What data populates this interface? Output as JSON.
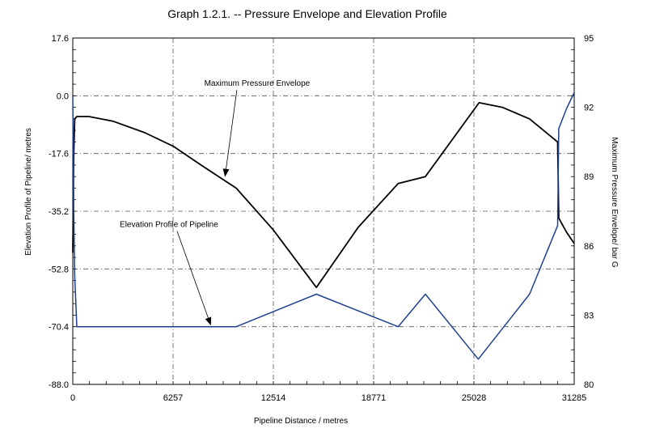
{
  "chart_data": {
    "type": "line",
    "title": "Graph 1.2.1.  --  Pressure Envelope and Elevation Profile",
    "xlabel": "Pipeline Distance / metres",
    "ylabel_left": "Elevation Profile of Pipeline/ metres",
    "ylabel_right": "Maximum Pressure Envelope/ bar G",
    "xlim": [
      0,
      31285
    ],
    "ylim_left": [
      -88.0,
      17.6
    ],
    "ylim_right": [
      80,
      95
    ],
    "x_ticks": [
      "0",
      "6257",
      "12514",
      "18771",
      "25028",
      "31285"
    ],
    "y_left_ticks": [
      "17.6",
      "0.0",
      "-17.6",
      "-35.2",
      "-52.8",
      "-70.4",
      "-88.0"
    ],
    "y_right_ticks": [
      "95",
      "92",
      "89",
      "86",
      "83",
      "80"
    ],
    "grid": true,
    "series": [
      {
        "name": "Maximum Pressure Envelope",
        "axis": "right",
        "color": "#000000",
        "points": [
          [
            0,
            85.7
          ],
          [
            60,
            90.0
          ],
          [
            120,
            91.5
          ],
          [
            250,
            91.6
          ],
          [
            1000,
            91.6
          ],
          [
            2500,
            91.4
          ],
          [
            4500,
            90.9
          ],
          [
            6300,
            90.3
          ],
          [
            8000,
            89.5
          ],
          [
            10200,
            88.5
          ],
          [
            12500,
            86.7
          ],
          [
            15200,
            84.2
          ],
          [
            17800,
            86.8
          ],
          [
            20300,
            88.7
          ],
          [
            22000,
            89.0
          ],
          [
            25350,
            92.2
          ],
          [
            26800,
            92.0
          ],
          [
            28500,
            91.5
          ],
          [
            30250,
            90.5
          ],
          [
            30320,
            87.2
          ],
          [
            30800,
            86.6
          ],
          [
            31285,
            86.1
          ]
        ]
      },
      {
        "name": "Elevation Profile of Pipeline",
        "axis": "left",
        "color": "#1f3f8f",
        "points": [
          [
            0,
            0.0
          ],
          [
            60,
            -35.2
          ],
          [
            120,
            -55.0
          ],
          [
            250,
            -70.4
          ],
          [
            10200,
            -70.4
          ],
          [
            15200,
            -60.5
          ],
          [
            20300,
            -70.4
          ],
          [
            22000,
            -60.5
          ],
          [
            25300,
            -80.3
          ],
          [
            28500,
            -60.5
          ],
          [
            30250,
            -39.6
          ],
          [
            30320,
            -10.0
          ],
          [
            30800,
            -4.0
          ],
          [
            31285,
            1.0
          ]
        ]
      }
    ],
    "annotations": [
      {
        "text": "Maximum Pressure Envelope",
        "x": 11500,
        "y": 3.0,
        "arrow_to": [
          9500,
          -24.5
        ],
        "axis": "left"
      },
      {
        "text": "Elevation Profile of Pipeline",
        "x": 6000,
        "y": -40.0,
        "arrow_to": [
          8600,
          -69.8
        ],
        "axis": "left"
      }
    ]
  }
}
